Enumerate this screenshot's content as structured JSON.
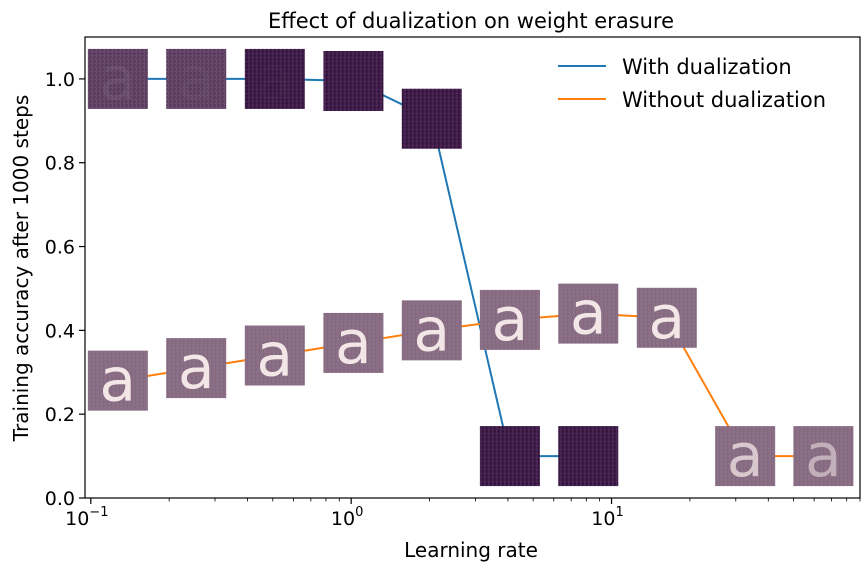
{
  "chart_data": {
    "type": "line",
    "title": "Effect of dualization on weight erasure",
    "xlabel": "Learning rate",
    "ylabel": "Training accuracy after 1000 steps",
    "xscale": "log",
    "xlim": [
      0.095,
      90
    ],
    "ylim": [
      0.0,
      1.1
    ],
    "xticks": [
      {
        "value": 0.1,
        "base": "10",
        "exp": "−1"
      },
      {
        "value": 1,
        "base": "10",
        "exp": "0"
      },
      {
        "value": 10,
        "base": "10",
        "exp": "1"
      }
    ],
    "yticks": [
      "0.0",
      "0.2",
      "0.4",
      "0.6",
      "0.8",
      "1.0"
    ],
    "legend_position": "top-right",
    "series": [
      {
        "name": "With dualization",
        "color": "#1f77b4",
        "x": [
          0.127,
          0.254,
          0.509,
          1.02,
          2.04,
          4.07,
          8.14,
          16.3,
          32.6,
          65.1
        ],
        "y": [
          1.0,
          1.0,
          1.0,
          0.995,
          0.905,
          0.1,
          0.1,
          null,
          null,
          null
        ],
        "thumbnail": "erased"
      },
      {
        "name": "Without dualization",
        "color": "#ff7f0e",
        "x": [
          0.127,
          0.254,
          0.509,
          1.02,
          2.04,
          4.07,
          8.14,
          16.3,
          32.6,
          65.1
        ],
        "y": [
          0.28,
          0.31,
          0.34,
          0.37,
          0.4,
          0.425,
          0.44,
          0.43,
          0.1,
          0.1
        ],
        "thumbnail": "letter"
      }
    ],
    "thumbnail_letter": "a",
    "thumbnail_letter_opacity": {
      "With dualization": [
        0.16,
        0.08,
        0.03,
        0,
        0,
        0,
        0,
        0,
        0,
        0
      ],
      "Without dualization": [
        1,
        1,
        1,
        1,
        1,
        1,
        1,
        1,
        0.75,
        0.55
      ]
    }
  }
}
